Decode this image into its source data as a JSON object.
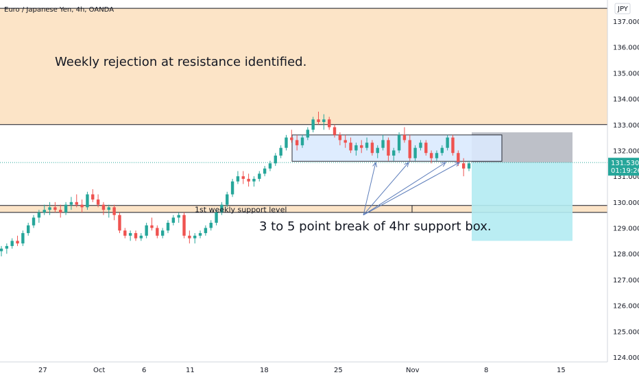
{
  "chart_data": {
    "type": "candlestick",
    "title": "Euro / Japanese Yen, 4h, OANDA",
    "currency": "JPY",
    "ylim": [
      123.8,
      137.8
    ],
    "y_ticks": [
      "137.000",
      "136.000",
      "135.000",
      "134.000",
      "133.000",
      "132.000",
      "131.000",
      "130.000",
      "129.000",
      "128.000",
      "127.000",
      "126.000",
      "125.000",
      "124.000"
    ],
    "x_ticks": [
      "27",
      "Oct",
      "6",
      "11",
      "18",
      "25",
      "Nov",
      "8",
      "15"
    ],
    "last_price": "131.530",
    "countdown": "01:19:26",
    "colors": {
      "up": "#26a69a",
      "down": "#ef5350",
      "zone": "#fce4c7",
      "box": "#dbeafe",
      "gray": "#b2b5be",
      "cyan": "#b2ebf2",
      "tag": "#26a69a"
    },
    "candles": [
      [
        128.1,
        128.3,
        127.9,
        128.2
      ],
      [
        128.2,
        128.4,
        128.0,
        128.3
      ],
      [
        128.3,
        128.6,
        128.2,
        128.5
      ],
      [
        128.5,
        128.7,
        128.3,
        128.4
      ],
      [
        128.4,
        128.9,
        128.3,
        128.8
      ],
      [
        128.8,
        129.2,
        128.7,
        129.1
      ],
      [
        129.1,
        129.5,
        129.0,
        129.4
      ],
      [
        129.4,
        129.7,
        129.2,
        129.6
      ],
      [
        129.6,
        129.9,
        129.5,
        129.7
      ],
      [
        129.7,
        130.0,
        129.5,
        129.8
      ],
      [
        129.8,
        130.0,
        129.6,
        129.7
      ],
      [
        129.7,
        129.9,
        129.4,
        129.6
      ],
      [
        129.6,
        130.0,
        129.5,
        129.9
      ],
      [
        129.9,
        130.2,
        129.7,
        130.0
      ],
      [
        130.0,
        130.3,
        129.8,
        129.9
      ],
      [
        129.9,
        130.1,
        129.6,
        129.8
      ],
      [
        129.8,
        130.4,
        129.7,
        130.3
      ],
      [
        130.3,
        130.5,
        130.0,
        130.1
      ],
      [
        130.1,
        130.3,
        129.8,
        129.9
      ],
      [
        129.9,
        130.0,
        129.5,
        129.7
      ],
      [
        129.7,
        129.9,
        129.4,
        129.8
      ],
      [
        129.8,
        129.9,
        129.3,
        129.5
      ],
      [
        129.5,
        129.6,
        128.8,
        128.9
      ],
      [
        128.9,
        129.0,
        128.6,
        128.7
      ],
      [
        128.7,
        128.9,
        128.5,
        128.8
      ],
      [
        128.8,
        128.9,
        128.5,
        128.6
      ],
      [
        128.6,
        128.8,
        128.5,
        128.7
      ],
      [
        128.7,
        129.2,
        128.6,
        129.1
      ],
      [
        129.1,
        129.4,
        128.9,
        129.0
      ],
      [
        129.0,
        129.1,
        128.6,
        128.7
      ],
      [
        128.7,
        129.0,
        128.6,
        128.9
      ],
      [
        128.9,
        129.3,
        128.8,
        129.2
      ],
      [
        129.2,
        129.5,
        129.1,
        129.4
      ],
      [
        129.4,
        129.6,
        129.2,
        129.5
      ],
      [
        129.5,
        129.6,
        128.6,
        128.7
      ],
      [
        128.7,
        128.9,
        128.4,
        128.6
      ],
      [
        128.6,
        128.8,
        128.4,
        128.7
      ],
      [
        128.7,
        128.9,
        128.6,
        128.8
      ],
      [
        128.8,
        129.1,
        128.7,
        129.0
      ],
      [
        129.0,
        129.3,
        128.9,
        129.2
      ],
      [
        129.2,
        129.7,
        129.1,
        129.6
      ],
      [
        129.6,
        130.0,
        129.5,
        129.9
      ],
      [
        129.9,
        130.4,
        129.8,
        130.3
      ],
      [
        130.3,
        130.9,
        130.2,
        130.8
      ],
      [
        130.8,
        131.2,
        130.7,
        131.0
      ],
      [
        131.0,
        131.2,
        130.7,
        130.9
      ],
      [
        130.9,
        131.1,
        130.6,
        130.8
      ],
      [
        130.8,
        131.0,
        130.6,
        130.9
      ],
      [
        130.9,
        131.2,
        130.8,
        131.1
      ],
      [
        131.1,
        131.4,
        131.0,
        131.3
      ],
      [
        131.3,
        131.6,
        131.2,
        131.5
      ],
      [
        131.5,
        131.9,
        131.4,
        131.8
      ],
      [
        131.8,
        132.2,
        131.7,
        132.1
      ],
      [
        132.1,
        132.6,
        132.0,
        132.5
      ],
      [
        132.5,
        132.8,
        132.3,
        132.4
      ],
      [
        132.4,
        132.6,
        132.0,
        132.2
      ],
      [
        132.2,
        132.6,
        132.1,
        132.5
      ],
      [
        132.5,
        132.9,
        132.4,
        132.8
      ],
      [
        132.8,
        133.3,
        132.7,
        133.2
      ],
      [
        133.2,
        133.5,
        133.0,
        133.1
      ],
      [
        133.1,
        133.4,
        132.8,
        133.2
      ],
      [
        133.2,
        133.3,
        132.8,
        132.9
      ],
      [
        132.9,
        133.0,
        132.5,
        132.6
      ],
      [
        132.6,
        132.7,
        132.2,
        132.4
      ],
      [
        132.4,
        132.6,
        132.1,
        132.3
      ],
      [
        132.3,
        132.5,
        131.9,
        132.0
      ],
      [
        132.0,
        132.3,
        131.8,
        132.2
      ],
      [
        132.2,
        132.4,
        131.9,
        132.1
      ],
      [
        132.1,
        132.5,
        132.0,
        132.3
      ],
      [
        132.3,
        132.4,
        131.8,
        131.9
      ],
      [
        131.9,
        132.2,
        131.7,
        132.1
      ],
      [
        132.1,
        132.6,
        132.0,
        132.4
      ],
      [
        132.4,
        132.5,
        131.6,
        131.8
      ],
      [
        131.8,
        132.1,
        131.6,
        132.0
      ],
      [
        132.0,
        132.7,
        131.9,
        132.6
      ],
      [
        132.6,
        132.9,
        132.3,
        132.4
      ],
      [
        132.4,
        132.6,
        131.6,
        131.7
      ],
      [
        131.7,
        132.2,
        131.6,
        132.1
      ],
      [
        132.1,
        132.4,
        132.0,
        132.3
      ],
      [
        132.3,
        132.4,
        131.8,
        131.9
      ],
      [
        131.9,
        132.0,
        131.5,
        131.7
      ],
      [
        131.7,
        132.0,
        131.6,
        131.9
      ],
      [
        131.9,
        132.2,
        131.8,
        132.1
      ],
      [
        132.1,
        132.6,
        132.0,
        132.5
      ],
      [
        132.5,
        132.6,
        131.8,
        131.9
      ],
      [
        131.9,
        132.0,
        131.4,
        131.5
      ],
      [
        131.5,
        131.7,
        131.0,
        131.3
      ],
      [
        131.3,
        131.6,
        131.2,
        131.5
      ]
    ],
    "annotations": {
      "weekly_rejection": "Weekly rejection at resistance identified.",
      "support_label": "1st weekly support level",
      "break_note": "3 to 5 point break of 4hr support box."
    }
  }
}
